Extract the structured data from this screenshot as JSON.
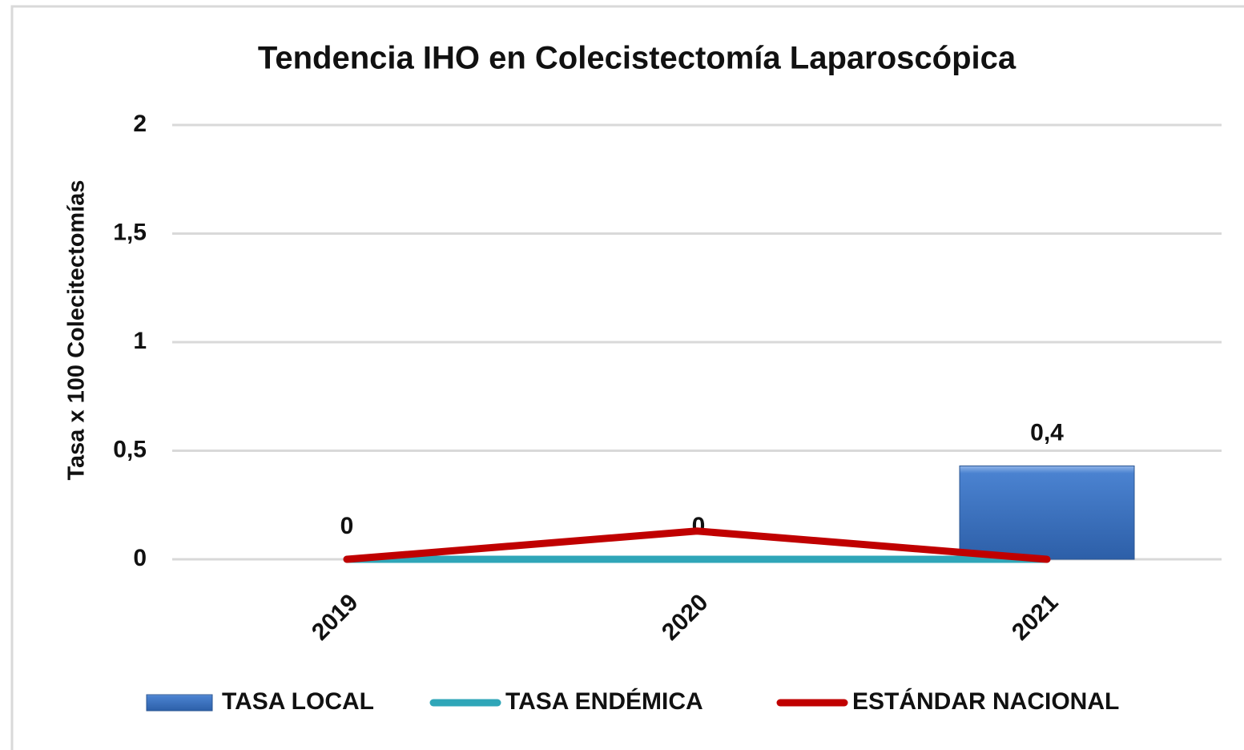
{
  "chart_data": {
    "type": "bar",
    "title": "Tendencia IHO en Colecistectomía Laparoscópica",
    "y_label": "Tasa x 100  Colecitectomías",
    "categories": [
      "2019",
      "2020",
      "2021"
    ],
    "series": [
      {
        "name": "TASA LOCAL",
        "type": "bar",
        "color": "#3b6fbd",
        "values": [
          0,
          0,
          0.43
        ],
        "value_labels": [
          "0",
          "0",
          "0,4"
        ]
      },
      {
        "name": "TASA ENDÉMICA",
        "type": "line",
        "color": "#2fa6b8",
        "values": [
          0,
          0,
          0
        ]
      },
      {
        "name": "ESTÁNDAR NACIONAL",
        "type": "line",
        "color": "#c00000",
        "values": [
          0,
          0.13,
          0
        ]
      }
    ],
    "ylim": [
      0,
      2
    ],
    "yticks": [
      0,
      {
        "value": 0.5,
        "label": "0,5"
      },
      1,
      {
        "value": 1.5,
        "label": "1,5"
      },
      2
    ],
    "grid": true,
    "legend": "bottom"
  }
}
